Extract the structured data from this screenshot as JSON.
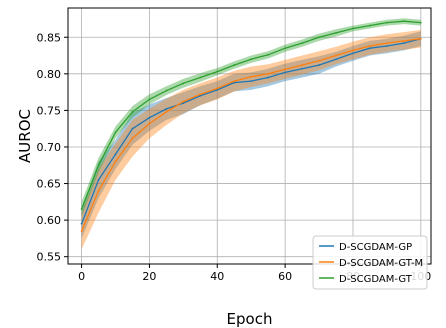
{
  "chart_data": {
    "type": "line",
    "title": "",
    "xlabel": "Epoch",
    "ylabel": "AUROC",
    "xlim": [
      -4,
      103
    ],
    "ylim": [
      0.54,
      0.89
    ],
    "xticks": [
      0,
      20,
      40,
      60,
      80,
      100
    ],
    "yticks": [
      0.55,
      0.6,
      0.65,
      0.7,
      0.75,
      0.8,
      0.85
    ],
    "grid": true,
    "legend_position": "lower-right",
    "x": [
      0,
      5,
      10,
      15,
      20,
      25,
      30,
      35,
      40,
      45,
      50,
      55,
      60,
      65,
      70,
      75,
      80,
      85,
      90,
      95,
      100
    ],
    "series": [
      {
        "name": "D-SCGDAM-GP",
        "color": "#1f77b4",
        "values": [
          0.595,
          0.655,
          0.69,
          0.725,
          0.74,
          0.752,
          0.76,
          0.77,
          0.778,
          0.788,
          0.79,
          0.795,
          0.802,
          0.807,
          0.812,
          0.82,
          0.828,
          0.835,
          0.838,
          0.842,
          0.848
        ],
        "band": [
          0.02,
          0.025,
          0.02,
          0.022,
          0.018,
          0.015,
          0.015,
          0.013,
          0.012,
          0.012,
          0.012,
          0.012,
          0.012,
          0.012,
          0.012,
          0.01,
          0.01,
          0.01,
          0.01,
          0.01,
          0.01
        ]
      },
      {
        "name": "D-SCGDAM-GT-M",
        "color": "#ff7f0e",
        "values": [
          0.585,
          0.64,
          0.68,
          0.712,
          0.732,
          0.748,
          0.762,
          0.772,
          0.78,
          0.79,
          0.796,
          0.8,
          0.806,
          0.812,
          0.818,
          0.825,
          0.832,
          0.838,
          0.842,
          0.845,
          0.848
        ],
        "band": [
          0.025,
          0.03,
          0.025,
          0.025,
          0.02,
          0.018,
          0.016,
          0.015,
          0.015,
          0.014,
          0.014,
          0.013,
          0.013,
          0.013,
          0.013,
          0.012,
          0.012,
          0.012,
          0.012,
          0.012,
          0.012
        ]
      },
      {
        "name": "D-SCGDAM-GT",
        "color": "#2ca02c",
        "values": [
          0.615,
          0.675,
          0.72,
          0.748,
          0.765,
          0.777,
          0.787,
          0.795,
          0.803,
          0.812,
          0.82,
          0.826,
          0.835,
          0.842,
          0.85,
          0.856,
          0.862,
          0.866,
          0.87,
          0.872,
          0.87
        ],
        "band": [
          0.01,
          0.01,
          0.008,
          0.008,
          0.007,
          0.006,
          0.006,
          0.006,
          0.005,
          0.005,
          0.005,
          0.005,
          0.005,
          0.005,
          0.005,
          0.005,
          0.004,
          0.004,
          0.004,
          0.004,
          0.004
        ]
      }
    ]
  }
}
